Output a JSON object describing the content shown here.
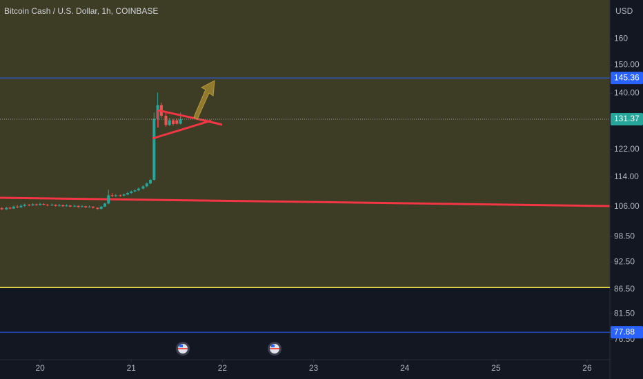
{
  "chart_data": {
    "type": "candlestick",
    "title": "Bitcoin Cash / U.S. Dollar, 1h, COINBASE",
    "y_axis_label": "USD",
    "log_scale": true,
    "ylim": [
      72.8,
      176
    ],
    "xlim": [
      19.56,
      26.25
    ],
    "yticks": [
      160,
      {
        "value": 150,
        "label": "150.00"
      },
      {
        "value": 140,
        "label": "140.00"
      },
      {
        "value": 122,
        "label": "122.00"
      },
      {
        "value": 114,
        "label": "114.00"
      },
      {
        "value": 106,
        "label": "106.00"
      },
      {
        "value": 98.5,
        "label": "98.50"
      },
      {
        "value": 92.5,
        "label": "92.50"
      },
      {
        "value": 86.5,
        "label": "86.50"
      },
      {
        "value": 81.5,
        "label": "81.50"
      },
      {
        "value": 76.5,
        "label": "76.50"
      }
    ],
    "xticks": [
      20,
      21,
      22,
      23,
      24,
      25,
      26
    ],
    "up_color": "#26a69a",
    "down_color": "#ef5350",
    "x": [
      19.58,
      19.63,
      19.67,
      19.71,
      19.75,
      19.79,
      19.83,
      19.88,
      19.92,
      19.96,
      20.0,
      20.04,
      20.08,
      20.13,
      20.17,
      20.21,
      20.25,
      20.29,
      20.33,
      20.38,
      20.42,
      20.46,
      20.5,
      20.54,
      20.58,
      20.63,
      20.67,
      20.71,
      20.75,
      20.79,
      20.83,
      20.88,
      20.92,
      20.96,
      21.0,
      21.04,
      21.08,
      21.13,
      21.17,
      21.21,
      21.25,
      21.29,
      21.33,
      21.38,
      21.42,
      21.46,
      21.5,
      21.54
    ],
    "open": [
      105.6,
      105.3,
      105.7,
      105.5,
      106.0,
      105.8,
      106.2,
      106.5,
      106.3,
      106.6,
      106.4,
      106.7,
      106.5,
      106.3,
      106.5,
      106.2,
      106.4,
      106.1,
      106.3,
      106.0,
      106.2,
      105.9,
      106.1,
      105.8,
      106.0,
      105.7,
      105.4,
      106.0,
      106.8,
      109.0,
      108.8,
      109.0,
      108.9,
      109.2,
      109.6,
      110.0,
      110.3,
      110.8,
      111.4,
      112.2,
      113.2,
      131.5,
      136.0,
      132.5,
      129.5,
      131.0,
      131.0,
      129.9
    ],
    "high": [
      105.9,
      105.9,
      106.0,
      106.3,
      106.4,
      106.6,
      106.8,
      106.7,
      106.9,
      106.8,
      107.0,
      106.9,
      106.7,
      106.8,
      106.6,
      106.7,
      106.5,
      106.6,
      106.4,
      106.5,
      106.3,
      106.4,
      106.2,
      106.3,
      106.1,
      105.8,
      106.2,
      107.0,
      110.5,
      109.6,
      109.3,
      109.2,
      109.5,
      109.9,
      110.3,
      110.6,
      111.1,
      111.7,
      112.5,
      113.5,
      133.5,
      140.2,
      136.8,
      133.5,
      131.8,
      131.5,
      131.6,
      133.5
    ],
    "low": [
      105.1,
      105.1,
      105.3,
      105.4,
      105.6,
      105.7,
      106.0,
      106.1,
      106.2,
      106.2,
      106.3,
      106.3,
      106.1,
      106.2,
      106.0,
      106.0,
      105.9,
      106.0,
      105.8,
      105.9,
      105.7,
      105.8,
      105.6,
      105.7,
      105.5,
      105.2,
      105.3,
      105.9,
      106.6,
      108.5,
      108.5,
      108.6,
      108.7,
      109.0,
      109.4,
      109.8,
      110.1,
      110.6,
      111.2,
      112.0,
      113.0,
      131.0,
      131.8,
      129.0,
      129.2,
      129.3,
      129.6,
      129.7
    ],
    "close": [
      105.3,
      105.7,
      105.5,
      106.0,
      105.8,
      106.2,
      106.5,
      106.3,
      106.6,
      106.4,
      106.7,
      106.5,
      106.3,
      106.5,
      106.2,
      106.4,
      106.1,
      106.3,
      106.0,
      106.2,
      105.9,
      106.1,
      105.8,
      106.0,
      105.7,
      105.4,
      106.0,
      106.8,
      109.0,
      108.8,
      109.0,
      108.9,
      109.2,
      109.6,
      110.0,
      110.3,
      110.8,
      111.4,
      112.2,
      113.2,
      131.5,
      136.0,
      132.5,
      129.5,
      131.0,
      129.8,
      129.9,
      131.37
    ],
    "levels": [
      {
        "value": 86.9,
        "color": "#f7e94a"
      }
    ],
    "tags": [
      {
        "value": 145.36,
        "color": "#2962ff"
      },
      {
        "value": 131.37,
        "color": "#26a69a"
      },
      {
        "value": 77.88,
        "color": "#2962ff"
      }
    ]
  }
}
